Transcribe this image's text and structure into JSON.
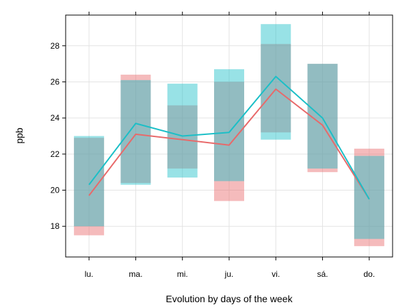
{
  "chart_data": {
    "type": "line",
    "title": "",
    "xlabel": "Evolution by days of the week",
    "ylabel": "ppb",
    "categories": [
      "lu.",
      "ma.",
      "mi.",
      "ju.",
      "vi.",
      "sá.",
      "do."
    ],
    "ylim": [
      16.3,
      29.7
    ],
    "yticks": [
      18,
      20,
      22,
      24,
      26,
      28
    ],
    "grid": true,
    "legend": "none",
    "series": [
      {
        "color": "#e8696a",
        "values": [
          19.7,
          23.1,
          22.8,
          22.5,
          25.6,
          23.6,
          19.5
        ],
        "band_lower": [
          17.5,
          20.4,
          21.2,
          19.4,
          23.2,
          21.0,
          16.9
        ],
        "band_upper": [
          22.9,
          26.4,
          24.7,
          26.0,
          28.1,
          27.0,
          22.3
        ]
      },
      {
        "color": "#1bbfc7",
        "values": [
          20.3,
          23.7,
          23.0,
          23.2,
          26.3,
          24.0,
          19.5
        ],
        "band_lower": [
          18.0,
          20.3,
          20.7,
          20.5,
          22.8,
          21.2,
          17.3
        ],
        "band_upper": [
          23.0,
          26.1,
          25.9,
          26.7,
          29.2,
          27.0,
          21.9
        ]
      }
    ]
  }
}
